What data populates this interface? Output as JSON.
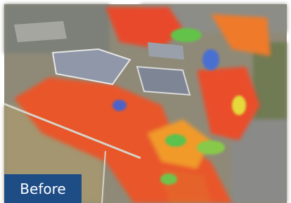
{
  "label": "Before"
}
